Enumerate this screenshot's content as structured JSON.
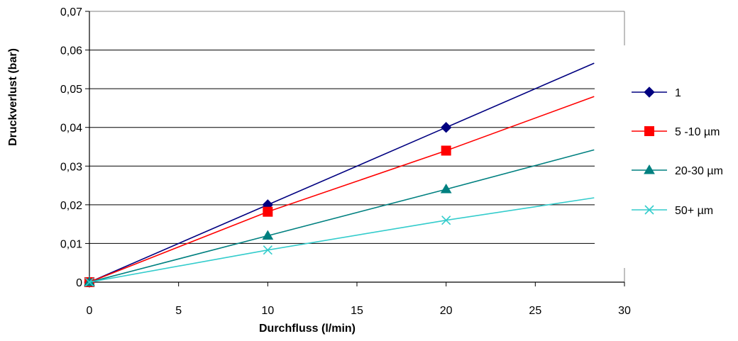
{
  "chart_data": {
    "type": "line",
    "title": "",
    "xlabel": "Durchfluss (l/min)",
    "ylabel": "Druckverlust (bar)",
    "xlim": [
      0,
      30
    ],
    "ylim": [
      0,
      0.07
    ],
    "x_ticks": [
      "0",
      "5",
      "10",
      "15",
      "20",
      "25",
      "30"
    ],
    "y_ticks": [
      "0",
      "0,01",
      "0,02",
      "0,03",
      "0,04",
      "0,05",
      "0,06",
      "0,07"
    ],
    "grid": "horizontal",
    "legend_position": "right",
    "series": [
      {
        "name": "1",
        "color": "#000080",
        "marker": "diamond",
        "points": [
          [
            0,
            0
          ],
          [
            10,
            0.02
          ],
          [
            20,
            0.04
          ]
        ],
        "trend_end": [
          28.3,
          0.0566
        ]
      },
      {
        "name": "5 -10 µm",
        "color": "#ff0000",
        "marker": "square",
        "points": [
          [
            0,
            0
          ],
          [
            10,
            0.0182
          ],
          [
            20,
            0.034
          ]
        ],
        "trend_end": [
          28.3,
          0.048
        ]
      },
      {
        "name": "20-30 µm",
        "color": "#008080",
        "marker": "triangle",
        "points": [
          [
            0,
            0
          ],
          [
            10,
            0.012
          ],
          [
            20,
            0.024
          ]
        ],
        "trend_end": [
          28.3,
          0.0342
        ]
      },
      {
        "name": "50+ µm",
        "color": "#33cccc",
        "marker": "x",
        "points": [
          [
            0,
            0
          ],
          [
            10,
            0.0083
          ],
          [
            20,
            0.016
          ]
        ],
        "trend_end": [
          28.3,
          0.0218
        ]
      }
    ]
  }
}
